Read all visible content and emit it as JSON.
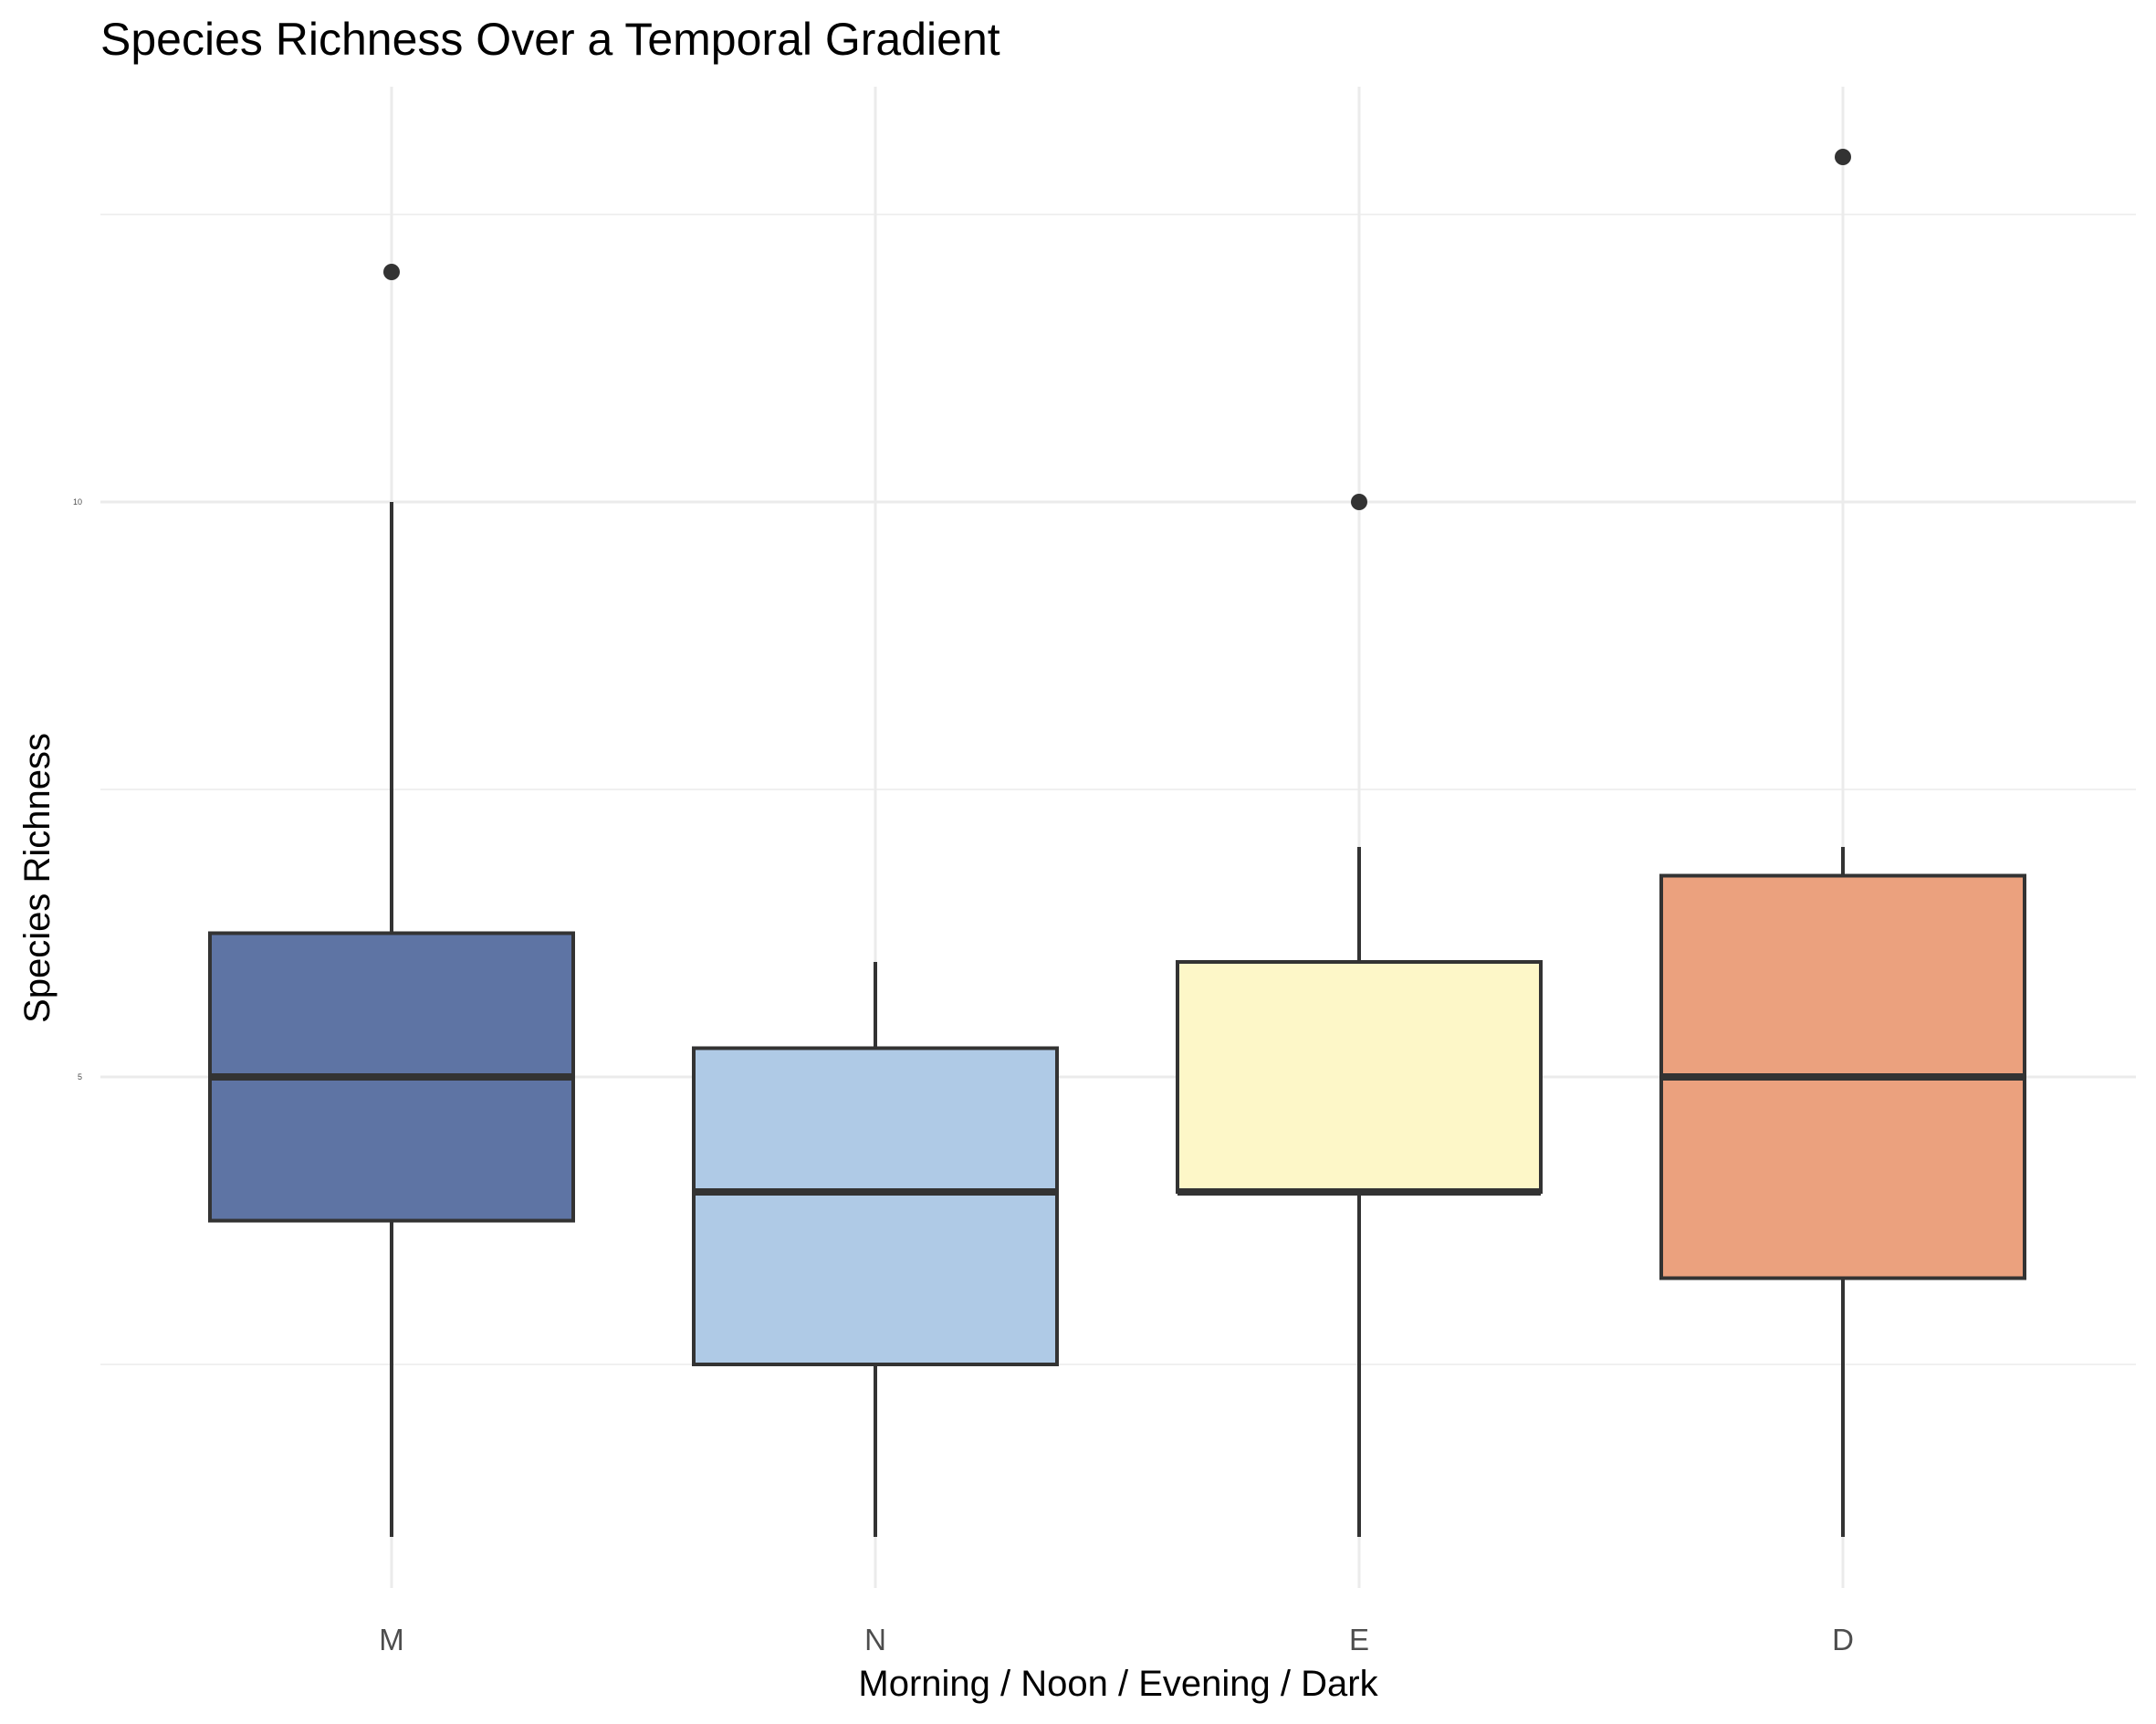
{
  "chart_data": {
    "type": "box",
    "title": "Species Richness Over a Temporal Gradient",
    "xlabel": "Morning / Noon / Evening / Dark",
    "ylabel": "Species Richness",
    "categories": [
      "M",
      "N",
      "E",
      "D"
    ],
    "ylim": [
      0.3,
      13.6
    ],
    "yticks": [
      {
        "value": 5,
        "label": "5"
      },
      {
        "value": 10,
        "label": "10"
      }
    ],
    "minor_gridlines": [
      2.5,
      7.5,
      12.5
    ],
    "grid": true,
    "legend": "none",
    "boxes": [
      {
        "category": "M",
        "whisker_low": 1,
        "q1": 3.75,
        "median": 5,
        "q3": 6.25,
        "whisker_high": 10,
        "outliers": [
          12
        ],
        "fill": "#5E74A4"
      },
      {
        "category": "N",
        "whisker_low": 1,
        "q1": 2.5,
        "median": 4,
        "q3": 5.25,
        "whisker_high": 6,
        "outliers": [],
        "fill": "#AFCAE6"
      },
      {
        "category": "E",
        "whisker_low": 1,
        "q1": 4,
        "median": 4,
        "q3": 6,
        "whisker_high": 7,
        "outliers": [
          10
        ],
        "fill": "#FDF7C8"
      },
      {
        "category": "D",
        "whisker_low": 1,
        "q1": 3.25,
        "median": 5,
        "q3": 6.75,
        "whisker_high": 7,
        "outliers": [
          13
        ],
        "fill": "#EBA17E"
      }
    ]
  }
}
